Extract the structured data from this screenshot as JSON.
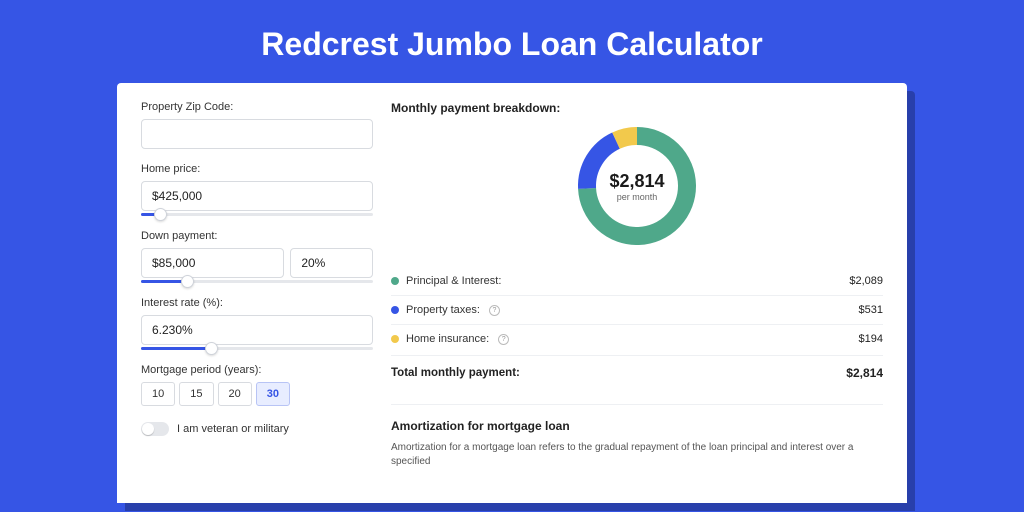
{
  "page": {
    "title": "Redcrest Jumbo Loan Calculator",
    "background_color": "#3655e5"
  },
  "form": {
    "zip": {
      "label": "Property Zip Code:",
      "value": ""
    },
    "home_price": {
      "label": "Home price:",
      "value": "$425,000",
      "slider_pct": 8
    },
    "down_payment": {
      "label": "Down payment:",
      "amount": "$85,000",
      "percent": "20%",
      "slider_pct": 20
    },
    "interest_rate": {
      "label": "Interest rate (%):",
      "value": "6.230%",
      "slider_pct": 30
    },
    "mortgage_period": {
      "label": "Mortgage period (years):",
      "options": [
        "10",
        "15",
        "20",
        "30"
      ],
      "selected": "30"
    },
    "veteran": {
      "label": "I am veteran or military",
      "on": false
    }
  },
  "breakdown": {
    "title": "Monthly payment breakdown:",
    "center_amount": "$2,814",
    "center_sub": "per month",
    "donut": {
      "slices": [
        {
          "key": "principal_interest",
          "value": 2089,
          "color": "#4fa88a"
        },
        {
          "key": "property_taxes",
          "value": 531,
          "color": "#3655e5"
        },
        {
          "key": "home_insurance",
          "value": 194,
          "color": "#f2c94c"
        }
      ],
      "stroke_width": 18,
      "radius": 50,
      "bg": "#ffffff"
    },
    "rows": [
      {
        "label": "Principal & Interest:",
        "value": "$2,089",
        "color": "#4fa88a",
        "info": false
      },
      {
        "label": "Property taxes:",
        "value": "$531",
        "color": "#3655e5",
        "info": true
      },
      {
        "label": "Home insurance:",
        "value": "$194",
        "color": "#f2c94c",
        "info": true
      }
    ],
    "total": {
      "label": "Total monthly payment:",
      "value": "$2,814"
    }
  },
  "amortization": {
    "title": "Amortization for mortgage loan",
    "body": "Amortization for a mortgage loan refers to the gradual repayment of the loan principal and interest over a specified"
  }
}
